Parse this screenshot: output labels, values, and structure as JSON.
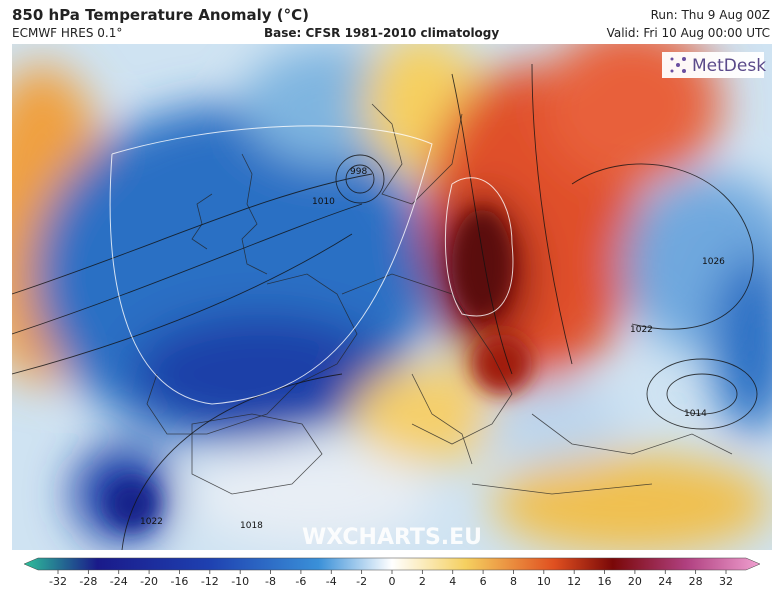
{
  "header": {
    "title": "850 hPa Temperature Anomaly (°C)",
    "model": "ECMWF HRES 0.1°",
    "base": "Base: CFSR 1981-2010 climatology",
    "run": "Run: Thu 9 Aug 00Z",
    "valid": "Valid: Fri 10 Aug 00:00 UTC"
  },
  "logo": "MetDesk",
  "watermark": "WXCHARTS.EU",
  "map": {
    "contour_labels": [
      "998",
      "1010",
      "1022",
      "1026",
      "1018",
      "1014",
      "1022"
    ]
  },
  "colorbar": {
    "ticks": [
      -32,
      -28,
      -24,
      -20,
      -16,
      -12,
      -10,
      -8,
      -6,
      -4,
      -2,
      0,
      2,
      4,
      6,
      8,
      10,
      12,
      16,
      20,
      24,
      28,
      32
    ]
  }
}
